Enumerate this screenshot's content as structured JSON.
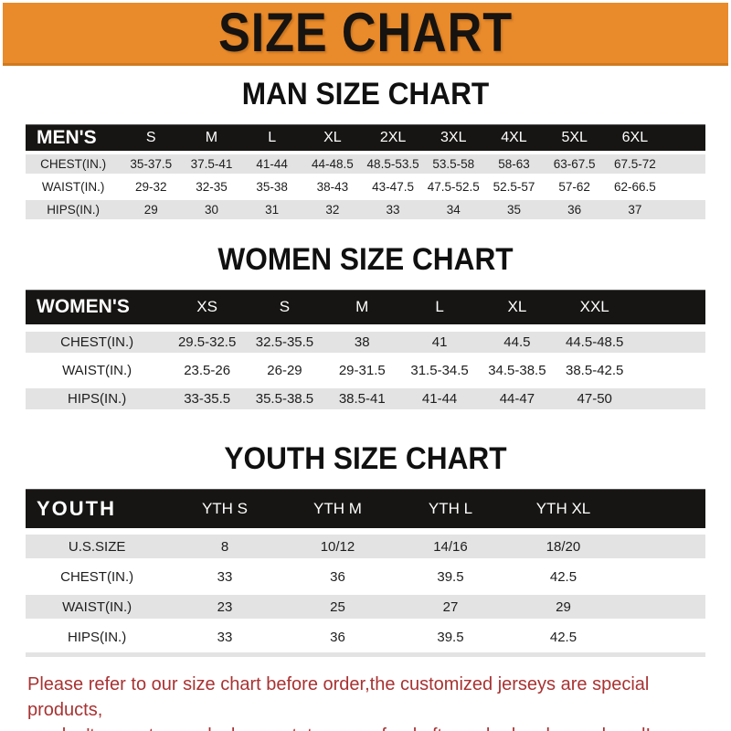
{
  "banner": {
    "title": "SIZE CHART"
  },
  "sections": [
    {
      "title": "MAN SIZE CHART",
      "header": {
        "label": "MEN'S",
        "sizes": [
          "S",
          "M",
          "L",
          "XL",
          "2XL",
          "3XL",
          "4XL",
          "5XL",
          "6XL"
        ]
      },
      "rows": [
        {
          "label": "CHEST(IN.)",
          "values": [
            "35-37.5",
            "37.5-41",
            "41-44",
            "44-48.5",
            "48.5-53.5",
            "53.5-58",
            "58-63",
            "63-67.5",
            "67.5-72"
          ]
        },
        {
          "label": "WAIST(IN.)",
          "values": [
            "29-32",
            "32-35",
            "35-38",
            "38-43",
            "43-47.5",
            "47.5-52.5",
            "52.5-57",
            "57-62",
            "62-66.5"
          ]
        },
        {
          "label": "HIPS(IN.)",
          "values": [
            "29",
            "30",
            "31",
            "32",
            "33",
            "34",
            "35",
            "36",
            "37"
          ]
        }
      ]
    },
    {
      "title": "WOMEN SIZE CHART",
      "header": {
        "label": "WOMEN'S",
        "sizes": [
          "XS",
          "S",
          "M",
          "L",
          "XL",
          "XXL"
        ]
      },
      "rows": [
        {
          "label": "CHEST(IN.)",
          "values": [
            "29.5-32.5",
            "32.5-35.5",
            "38",
            "41",
            "44.5",
            "44.5-48.5"
          ]
        },
        {
          "label": "WAIST(IN.)",
          "values": [
            "23.5-26",
            "26-29",
            "29-31.5",
            "31.5-34.5",
            "34.5-38.5",
            "38.5-42.5"
          ]
        },
        {
          "label": "HIPS(IN.)",
          "values": [
            "33-35.5",
            "35.5-38.5",
            "38.5-41",
            "41-44",
            "44-47",
            "47-50"
          ]
        }
      ]
    },
    {
      "title": "YOUTH SIZE CHART",
      "header": {
        "label": "YOUTH",
        "sizes": [
          "YTH S",
          "YTH M",
          "YTH L",
          "YTH XL"
        ]
      },
      "rows": [
        {
          "label": "U.S.SIZE",
          "values": [
            "8",
            "10/12",
            "14/16",
            "18/20"
          ]
        },
        {
          "label": "CHEST(IN.)",
          "values": [
            "33",
            "36",
            "39.5",
            "42.5"
          ]
        },
        {
          "label": "WAIST(IN.)",
          "values": [
            "23",
            "25",
            "27",
            "29"
          ]
        },
        {
          "label": "HIPS(IN.)",
          "values": [
            "33",
            "36",
            "39.5",
            "42.5"
          ]
        }
      ]
    }
  ],
  "footnote": {
    "line1": "Please refer to our size chart before order,the customized jerseys are special products,",
    "line2": "we don't accept cancel, change, teturn or refund after order has been placed!"
  },
  "colors": {
    "banner_bg": "#E98A2B",
    "header_bar": "#171513",
    "row_stripe": "#E3E3E3",
    "note_red": "#A83232"
  }
}
